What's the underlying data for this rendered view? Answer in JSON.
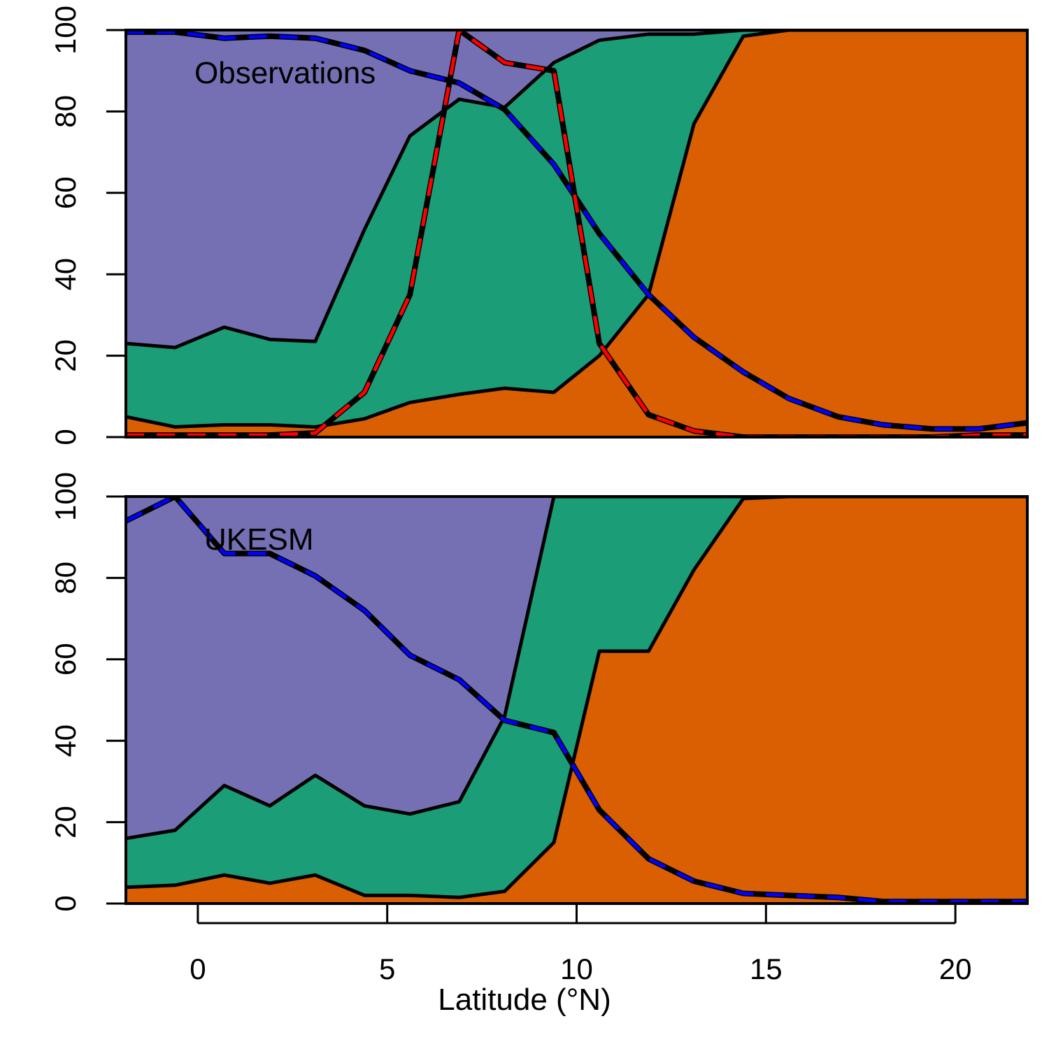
{
  "chart_data": {
    "type": "area",
    "xlabel": "Latitude (°N)",
    "xlim": [
      -1.9,
      21.9
    ],
    "xticks": [
      0,
      5,
      10,
      15,
      20
    ],
    "ylim": [
      0,
      100
    ],
    "yticks": [
      0,
      20,
      40,
      60,
      80,
      100
    ],
    "colors": {
      "class_bottom": "#d95f02",
      "class_middle": "#1b9e77",
      "class_top": "#7570b3",
      "boundary": "#000000",
      "blue_line": "#0000ff",
      "red_line": "#ff0000"
    },
    "panels": [
      {
        "label": "Observations",
        "x": [
          -1.9,
          -0.6,
          0.7,
          1.9,
          3.1,
          4.4,
          5.6,
          6.9,
          8.1,
          9.4,
          10.6,
          11.9,
          13.1,
          14.4,
          15.6,
          16.9,
          18.1,
          19.4,
          20.6,
          21.9
        ],
        "boundary_lower": [
          5,
          2.5,
          3,
          3,
          2.5,
          4.5,
          8.5,
          10.5,
          12,
          11,
          20,
          35,
          77,
          98.5,
          100,
          100,
          100,
          100,
          100,
          100
        ],
        "boundary_upper": [
          23,
          22,
          27,
          24,
          23.5,
          51,
          74,
          83,
          81,
          92,
          97.5,
          99,
          99,
          100,
          100,
          100,
          100,
          100,
          100,
          100
        ],
        "blue_line": [
          99.5,
          99.5,
          98,
          98.5,
          98,
          95,
          90,
          87,
          80.5,
          67,
          50,
          35,
          24.5,
          16,
          9.5,
          5,
          3,
          2,
          2,
          3.5
        ],
        "red_line": [
          0.5,
          0.5,
          0.5,
          0.5,
          1,
          11,
          35,
          100,
          92,
          90,
          23,
          5.5,
          1.5,
          0,
          0,
          0,
          0,
          0,
          0.5,
          0.5
        ]
      },
      {
        "label": "UKESM",
        "x": [
          -1.9,
          -0.6,
          0.7,
          1.9,
          3.1,
          4.4,
          5.6,
          6.9,
          8.1,
          9.4,
          10.6,
          11.9,
          13.1,
          14.4,
          15.6,
          16.9,
          18.1,
          19.4,
          20.6,
          21.9
        ],
        "boundary_lower": [
          4,
          4.5,
          7,
          5,
          7,
          2,
          2,
          1.5,
          3,
          15,
          62,
          62,
          82,
          99.5,
          100,
          100,
          100,
          100,
          100,
          100
        ],
        "boundary_upper": [
          16,
          18,
          29,
          24,
          31.5,
          24,
          22,
          25,
          46,
          100,
          100,
          100,
          100,
          100,
          100,
          100,
          100,
          100,
          100,
          100
        ],
        "blue_line": [
          94,
          100,
          86,
          86,
          80.5,
          72,
          61,
          55,
          45,
          42,
          23,
          11,
          5.5,
          2.5,
          2,
          1.5,
          0.5,
          0.5,
          0.5,
          0.5
        ],
        "red_line": []
      }
    ]
  }
}
